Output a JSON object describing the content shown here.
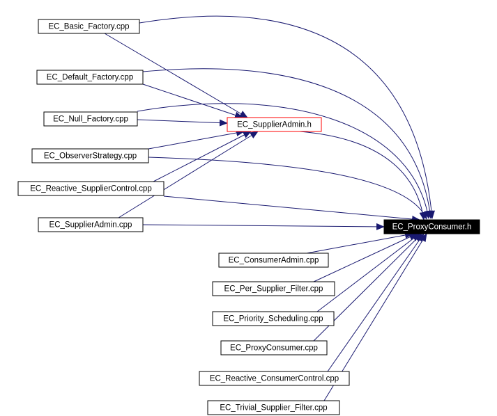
{
  "nodes": [
    {
      "label": "EC_Basic_Factory.cpp"
    },
    {
      "label": "EC_Default_Factory.cpp"
    },
    {
      "label": "EC_Null_Factory.cpp"
    },
    {
      "label": "EC_ObserverStrategy.cpp"
    },
    {
      "label": "EC_Reactive_SupplierControl.cpp"
    },
    {
      "label": "EC_SupplierAdmin.cpp"
    },
    {
      "label": "EC_SupplierAdmin.h"
    },
    {
      "label": "EC_ProxyConsumer.h"
    },
    {
      "label": "EC_ConsumerAdmin.cpp"
    },
    {
      "label": "EC_Per_Supplier_Filter.cpp"
    },
    {
      "label": "EC_Priority_Scheduling.cpp"
    },
    {
      "label": "EC_ProxyConsumer.cpp"
    },
    {
      "label": "EC_Reactive_ConsumerControl.cpp"
    },
    {
      "label": "EC_Trivial_Supplier_Filter.cpp"
    }
  ]
}
